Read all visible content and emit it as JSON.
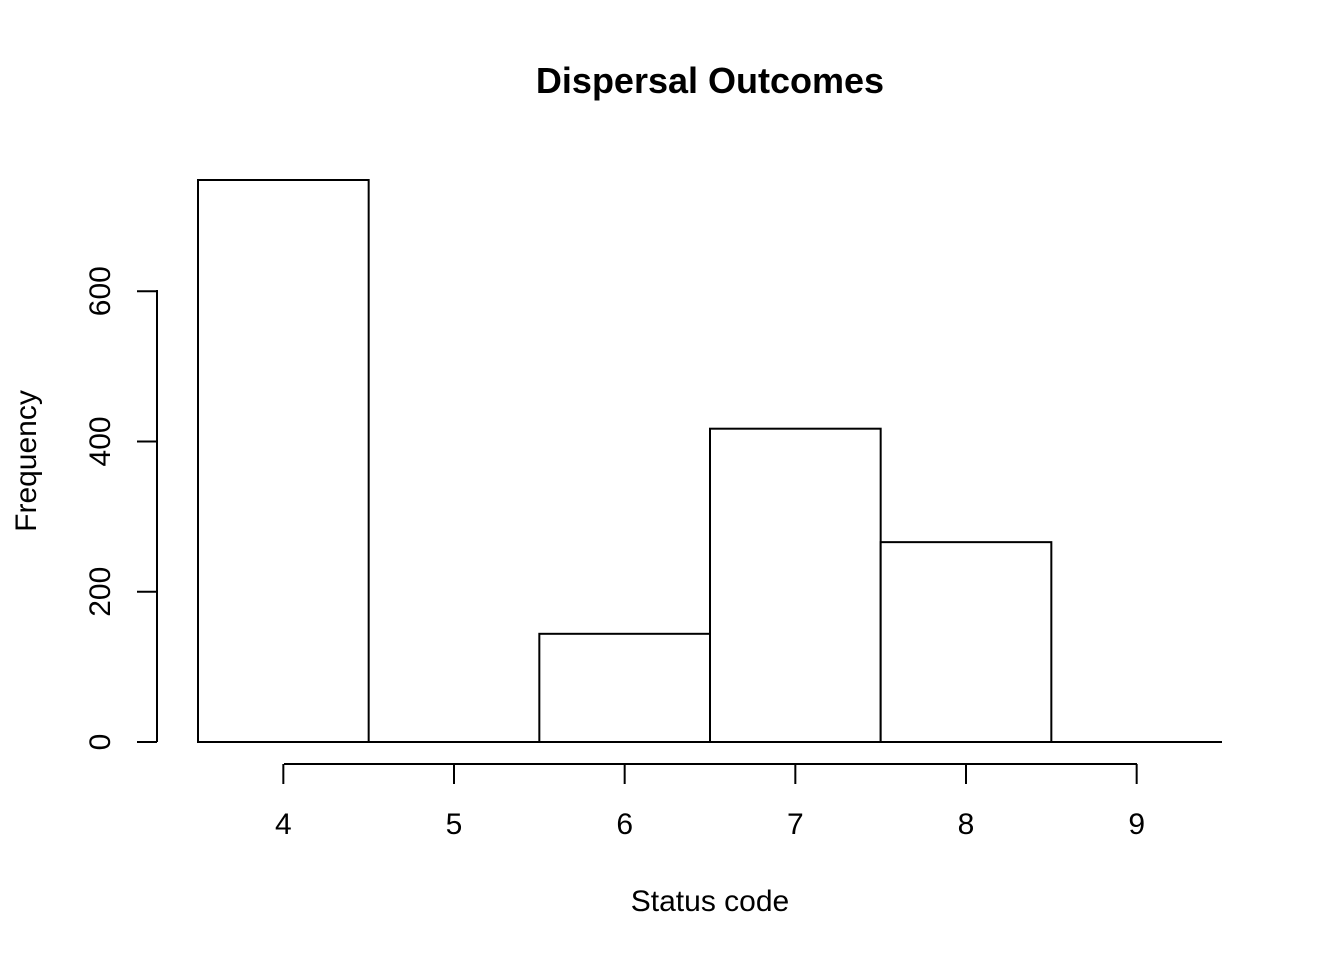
{
  "chart_data": {
    "type": "bar",
    "title": "Dispersal Outcomes",
    "xlabel": "Status code",
    "ylabel": "Frequency",
    "categories": [
      "4",
      "5",
      "6",
      "7",
      "8",
      "9"
    ],
    "values": [
      748,
      0,
      144,
      417,
      266,
      0
    ],
    "x_ticks": [
      "4",
      "5",
      "6",
      "7",
      "8",
      "9"
    ],
    "y_ticks": [
      "0",
      "200",
      "400",
      "600"
    ],
    "ylim": [
      0,
      748
    ],
    "xlim": [
      3.5,
      9.5
    ],
    "grid": false,
    "colors": {
      "bar_fill": "#ffffff",
      "bar_stroke": "#000000",
      "text": "#000000"
    }
  }
}
